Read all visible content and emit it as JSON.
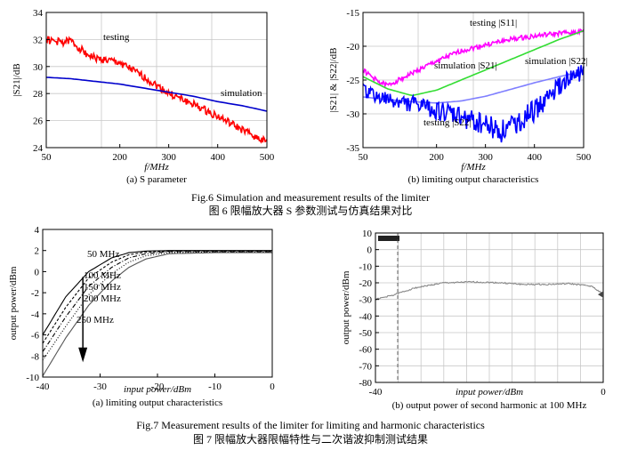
{
  "chart_data": [
    {
      "type": "line",
      "id": "fig6a",
      "caption": "(a) S parameter",
      "xlabel": "f/MHz",
      "ylabel": "|S21|/dB",
      "xlim": [
        50,
        500
      ],
      "ylim": [
        24,
        34
      ],
      "x_ticks": [
        "50",
        "200",
        "300",
        "400",
        "500"
      ],
      "y_ticks": [
        "24",
        "26",
        "28",
        "30",
        "32",
        "34"
      ],
      "grid": true,
      "series": [
        {
          "name": "testing",
          "color": "#ff0000",
          "x": [
            50,
            60,
            80,
            100,
            130,
            150,
            200,
            250,
            300,
            350,
            400,
            450,
            500
          ],
          "y": [
            32.0,
            31.9,
            31.8,
            31.9,
            31.0,
            30.6,
            30.3,
            29.2,
            28.0,
            27.2,
            26.3,
            25.3,
            24.4
          ]
        },
        {
          "name": "simulation",
          "color": "#0000cc",
          "x": [
            50,
            100,
            150,
            200,
            250,
            300,
            350,
            400,
            450,
            500
          ],
          "y": [
            29.2,
            29.1,
            28.9,
            28.7,
            28.4,
            28.1,
            27.8,
            27.4,
            27.1,
            26.7
          ]
        }
      ],
      "annotations": [
        "testing",
        "simulation"
      ]
    },
    {
      "type": "line",
      "id": "fig6b",
      "caption": "(b) limiting output characteristics",
      "xlabel": "f/MHz",
      "ylabel": "|S21| & |S22|/dB",
      "xlim": [
        50,
        500
      ],
      "ylim": [
        -35,
        -15
      ],
      "x_ticks": [
        "50",
        "200",
        "300",
        "400",
        "500"
      ],
      "y_ticks": [
        "-15",
        "-20",
        "-25",
        "-30",
        "-35"
      ],
      "grid": true,
      "series": [
        {
          "name": "testing |S11|",
          "color": "#ff00ff",
          "x": [
            50,
            80,
            100,
            150,
            200,
            250,
            300,
            350,
            400,
            450,
            500
          ],
          "y": [
            -23.5,
            -25.2,
            -25.8,
            -24.0,
            -22.2,
            -20.7,
            -19.8,
            -19.0,
            -18.5,
            -18.1,
            -17.8
          ]
        },
        {
          "name": "simulation |S21|",
          "color": "#33dd33",
          "x": [
            50,
            100,
            150,
            200,
            250,
            300,
            350,
            400,
            450,
            500
          ],
          "y": [
            -24.5,
            -26.3,
            -27.3,
            -26.5,
            -25.0,
            -23.5,
            -22.0,
            -20.5,
            -19.0,
            -17.7
          ]
        },
        {
          "name": "simulation |S22|",
          "color": "#7f7fff",
          "x": [
            50,
            100,
            150,
            200,
            250,
            300,
            350,
            400,
            450,
            500
          ],
          "y": [
            -27.5,
            -27.9,
            -28.2,
            -28.4,
            -28.1,
            -27.4,
            -26.4,
            -25.4,
            -24.5,
            -23.7
          ]
        },
        {
          "name": "testing |S22|",
          "color": "#0000ff",
          "x": [
            50,
            80,
            100,
            150,
            200,
            250,
            300,
            330,
            350,
            400,
            450,
            500
          ],
          "y": [
            -26.5,
            -27.5,
            -28.0,
            -28.5,
            -29.5,
            -30.5,
            -31.5,
            -32.5,
            -32.0,
            -29.5,
            -26.0,
            -23.5
          ]
        }
      ],
      "annotations": [
        "testing |S11|",
        "simulation |S21|",
        "simulation |S22|",
        "testing |S22|"
      ]
    },
    {
      "type": "line",
      "id": "fig7a",
      "caption": "(a) limiting output characteristics",
      "xlabel": "input power/dBm",
      "ylabel": "output power/dBm",
      "xlim": [
        -40,
        0
      ],
      "ylim": [
        -10,
        4
      ],
      "x_ticks": [
        "-40",
        "-30",
        "-20",
        "-10",
        "0"
      ],
      "y_ticks": [
        "4",
        "2",
        "0",
        "-2",
        "-4",
        "-6",
        "-8",
        "-10"
      ],
      "grid": false,
      "series": [
        {
          "name": "50 MHz",
          "color": "#000000",
          "dash": "solid",
          "x": [
            -40,
            -36,
            -32,
            -28,
            -25,
            -22,
            -18,
            -10,
            0
          ],
          "y": [
            -6.0,
            -2.4,
            0.0,
            1.3,
            1.8,
            1.95,
            2.0,
            2.0,
            2.0
          ]
        },
        {
          "name": "100 MHz",
          "color": "#000000",
          "dash": "3,2",
          "x": [
            -40,
            -36,
            -32,
            -28,
            -25,
            -22,
            -18,
            -10,
            0
          ],
          "y": [
            -6.8,
            -3.4,
            -0.6,
            0.9,
            1.6,
            1.85,
            1.95,
            1.95,
            1.95
          ]
        },
        {
          "name": "150 MHz",
          "color": "#000000",
          "dash": "5,2,1,2",
          "x": [
            -40,
            -36,
            -32,
            -28,
            -25,
            -22,
            -18,
            -10,
            0
          ],
          "y": [
            -7.6,
            -4.3,
            -1.4,
            0.4,
            1.3,
            1.7,
            1.9,
            1.9,
            1.9
          ]
        },
        {
          "name": "200 MHz",
          "color": "#000000",
          "dash": "1,2",
          "x": [
            -40,
            -36,
            -32,
            -28,
            -25,
            -22,
            -18,
            -10,
            0
          ],
          "y": [
            -8.4,
            -5.2,
            -2.2,
            -0.2,
            0.9,
            1.5,
            1.8,
            1.85,
            1.85
          ]
        },
        {
          "name": "250 MHz",
          "color": "#555555",
          "dash": "solid",
          "x": [
            -40,
            -36,
            -32,
            -28,
            -25,
            -22,
            -18,
            -10,
            0
          ],
          "y": [
            -9.9,
            -6.3,
            -3.2,
            -0.9,
            0.4,
            1.2,
            1.7,
            1.8,
            1.8
          ]
        }
      ],
      "annotations": [
        "50 MHz",
        "100 MHz",
        "150 MHz",
        "200 MHz",
        "250 MHz"
      ]
    },
    {
      "type": "line",
      "id": "fig7b",
      "caption": "(b) output power of second harmonic at 100 MHz",
      "xlabel": "input power/dBm",
      "ylabel": "output power/dBm",
      "xlim": [
        -40,
        0
      ],
      "ylim": [
        -80,
        10
      ],
      "x_ticks": [
        "-40",
        "0"
      ],
      "y_ticks": [
        "10",
        "0",
        "-10",
        "-20",
        "-30",
        "-40",
        "-50",
        "-60",
        "-70",
        "-80"
      ],
      "grid": true,
      "series": [
        {
          "name": "second harmonic",
          "color": "#888888",
          "x": [
            -40,
            -37,
            -33,
            -28,
            -23,
            -18,
            -14,
            -10,
            -6,
            -2,
            0
          ],
          "y": [
            -30.0,
            -27.5,
            -23.0,
            -20.0,
            -19.5,
            -20.0,
            -21.0,
            -21.0,
            -20.5,
            -22.0,
            -27.0
          ]
        }
      ]
    }
  ],
  "captions": {
    "fig6_en": "Fig.6 Simulation and measurement results of the limiter",
    "fig6_cn": "图 6 限幅放大器 S 参数测试与仿真结果对比",
    "fig7_en": "Fig.7 Measurement results of the limiter for limiting and harmonic characteristics",
    "fig7_cn": "图 7 限幅放大器限幅特性与二次谐波抑制测试结果"
  }
}
